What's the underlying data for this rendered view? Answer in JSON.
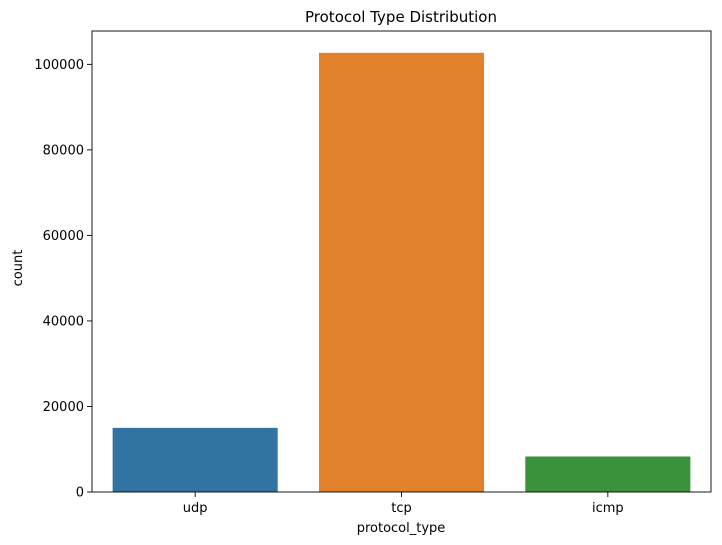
{
  "chart_data": {
    "type": "bar",
    "title": "Protocol Type Distribution",
    "xlabel": "protocol_type",
    "ylabel": "count",
    "categories": [
      "udp",
      "tcp",
      "icmp"
    ],
    "values": [
      15000,
      102700,
      8300
    ],
    "colors": [
      "#3274a1",
      "#e1812c",
      "#3a923a"
    ],
    "ylim": [
      0,
      107800
    ],
    "yticks": [
      0,
      20000,
      40000,
      60000,
      80000,
      100000
    ],
    "ytick_labels": [
      "0",
      "20000",
      "40000",
      "60000",
      "80000",
      "100000"
    ],
    "grid": false,
    "legend": "none"
  }
}
